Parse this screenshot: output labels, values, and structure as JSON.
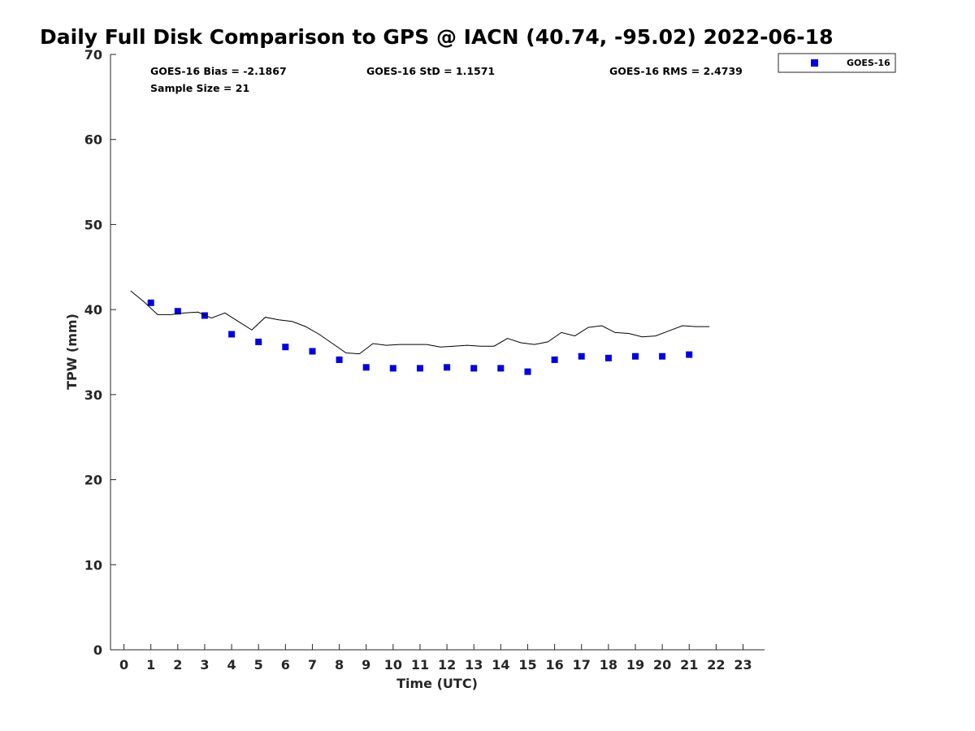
{
  "chart_data": {
    "type": "scatter",
    "title": "Daily Full Disk Comparison to GPS @ IACN (40.74, -95.02) 2022-06-18",
    "xlabel": "Time (UTC)",
    "ylabel": "TPW (mm)",
    "xlim": [
      -0.5,
      23.8
    ],
    "ylim": [
      0,
      70
    ],
    "xticks": [
      "0",
      "1",
      "2",
      "3",
      "4",
      "5",
      "6",
      "7",
      "8",
      "9",
      "10",
      "11",
      "12",
      "13",
      "14",
      "15",
      "16",
      "17",
      "18",
      "19",
      "20",
      "21",
      "22",
      "23"
    ],
    "yticks": [
      "0",
      "10",
      "20",
      "30",
      "40",
      "50",
      "60",
      "70"
    ],
    "grid": false,
    "legend_position": "top-right",
    "stats": {
      "bias": "GOES-16 Bias = -2.1867",
      "std": "GOES-16 StD = 1.1571",
      "rms": "GOES-16 RMS = 2.4739",
      "sample": "Sample Size = 21"
    },
    "series": [
      {
        "name": "GOES-16",
        "kind": "marker",
        "color": "#0000dd",
        "x": [
          1,
          2,
          3,
          4,
          5,
          6,
          7,
          8,
          9,
          10,
          11,
          12,
          13,
          14,
          15,
          16,
          17,
          18,
          19,
          20,
          21
        ],
        "y": [
          40.8,
          39.8,
          39.3,
          37.1,
          36.2,
          35.6,
          35.1,
          34.1,
          33.2,
          33.1,
          33.1,
          33.2,
          33.1,
          33.1,
          32.7,
          34.1,
          34.5,
          34.3,
          34.5,
          34.5,
          34.7
        ]
      },
      {
        "kind": "line",
        "color": "#000000",
        "x": [
          0.25,
          0.75,
          1.25,
          1.75,
          2.25,
          2.75,
          3.25,
          3.75,
          4.25,
          4.75,
          5.25,
          5.75,
          6.25,
          6.75,
          7.25,
          7.75,
          8.25,
          8.75,
          9.25,
          9.75,
          10.25,
          10.75,
          11.25,
          11.75,
          12.25,
          12.75,
          13.25,
          13.75,
          14.25,
          14.75,
          15.25,
          15.75,
          16.25,
          16.75,
          17.25,
          17.75,
          18.25,
          18.75,
          19.25,
          19.75,
          20.25,
          20.75,
          21.25,
          21.75
        ],
        "y": [
          42.2,
          40.9,
          39.4,
          39.4,
          39.6,
          39.7,
          39.0,
          39.6,
          38.6,
          37.6,
          39.1,
          38.8,
          38.6,
          38.0,
          37.1,
          36.0,
          34.9,
          34.8,
          36.0,
          35.8,
          35.9,
          35.9,
          35.9,
          35.6,
          35.7,
          35.8,
          35.7,
          35.7,
          36.6,
          36.1,
          35.9,
          36.2,
          37.3,
          36.9,
          37.9,
          38.1,
          37.3,
          37.2,
          36.8,
          36.9,
          37.5,
          38.1,
          38.0,
          38.0
        ]
      }
    ]
  }
}
